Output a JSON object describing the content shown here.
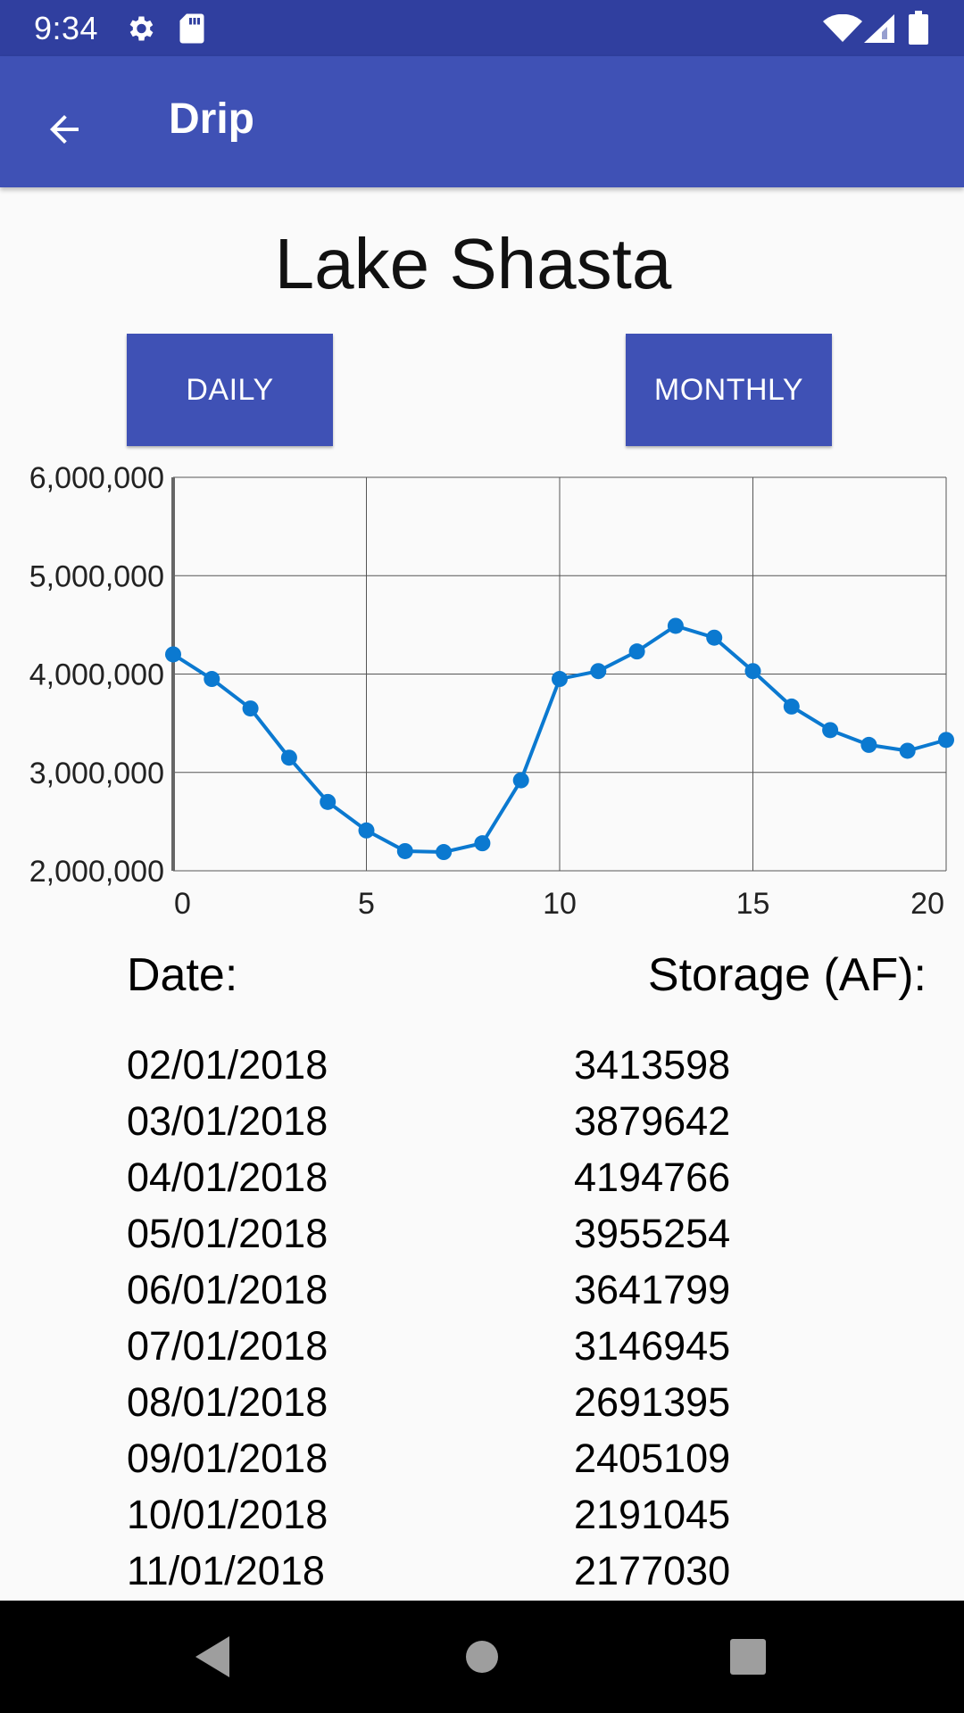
{
  "status_bar": {
    "time": "9:34",
    "icons": [
      "gear-icon",
      "sd-card-icon",
      "wifi-icon",
      "signal-icon",
      "battery-icon"
    ]
  },
  "app_bar": {
    "title": "Drip",
    "back_icon": "arrow-left-icon"
  },
  "lake": {
    "name": "Lake Shasta"
  },
  "buttons": {
    "daily": "DAILY",
    "monthly": "MONTHLY"
  },
  "colors": {
    "primary": "#3f51b5",
    "primary_dark": "#303f9f",
    "series": "#0b79d0"
  },
  "chart_data": {
    "type": "line",
    "x": [
      0,
      1,
      2,
      3,
      4,
      5,
      6,
      7,
      8,
      9,
      10,
      11,
      12,
      13,
      14,
      15,
      16,
      17,
      18,
      19,
      20
    ],
    "values": [
      4200000,
      3950000,
      3650000,
      3150000,
      2700000,
      2410000,
      2200000,
      2190000,
      2280000,
      2920000,
      3950000,
      4030000,
      4230000,
      4490000,
      4370000,
      4030000,
      3670000,
      3430000,
      3280000,
      3220000,
      3330000
    ],
    "xlim": [
      0,
      20
    ],
    "ylim": [
      2000000,
      6000000
    ],
    "x_ticks": [
      "0",
      "5",
      "10",
      "15",
      "20"
    ],
    "y_ticks": [
      "2,000,000",
      "3,000,000",
      "4,000,000",
      "5,000,000",
      "6,000,000"
    ],
    "grid": true
  },
  "table": {
    "headers": {
      "date": "Date:",
      "storage": "Storage (AF):"
    },
    "rows": [
      {
        "date": "02/01/2018",
        "value": "3413598"
      },
      {
        "date": "03/01/2018",
        "value": "3879642"
      },
      {
        "date": "04/01/2018",
        "value": "4194766"
      },
      {
        "date": "05/01/2018",
        "value": "3955254"
      },
      {
        "date": "06/01/2018",
        "value": "3641799"
      },
      {
        "date": "07/01/2018",
        "value": "3146945"
      },
      {
        "date": "08/01/2018",
        "value": "2691395"
      },
      {
        "date": "09/01/2018",
        "value": "2405109"
      },
      {
        "date": "10/01/2018",
        "value": "2191045"
      },
      {
        "date": "11/01/2018",
        "value": "2177030"
      }
    ]
  },
  "nav_bar": {
    "icons": [
      "back-triangle-icon",
      "home-circle-icon",
      "recents-square-icon"
    ]
  }
}
